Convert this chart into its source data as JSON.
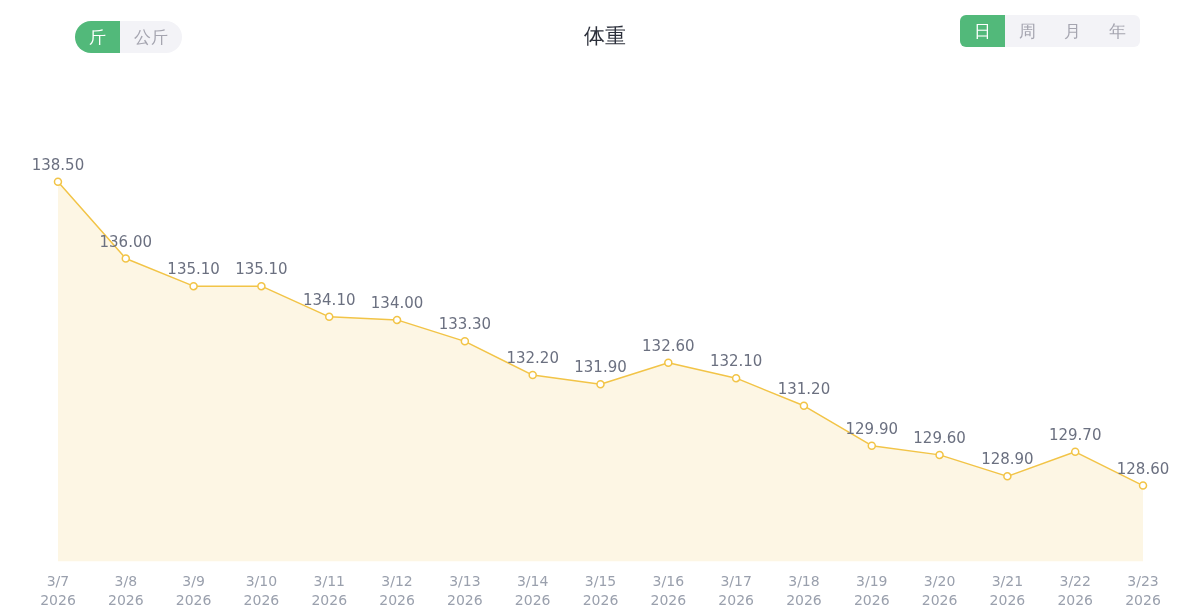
{
  "chart_data": {
    "type": "area",
    "title": "体重",
    "annotations": [
      "斤",
      "公斤",
      "日",
      "周",
      "月",
      "年"
    ],
    "categories": [
      "3/7\n2026",
      "3/8\n2026",
      "3/9\n2026",
      "3/10\n2026",
      "3/11\n2026",
      "3/12\n2026",
      "3/13\n2026",
      "3/14\n2026",
      "3/15\n2026",
      "3/16\n2026",
      "3/17\n2026",
      "3/18\n2026",
      "3/19\n2026",
      "3/20\n2026",
      "3/21\n2026",
      "3/22\n2026",
      "3/23\n2026"
    ],
    "series": [
      {
        "color": "#f2c447",
        "values": [
          138.5,
          136.0,
          135.1,
          135.1,
          134.1,
          134.0,
          133.3,
          132.2,
          131.9,
          132.6,
          132.1,
          131.2,
          129.9,
          129.6,
          128.9,
          129.7,
          128.6
        ],
        "value_labels": [
          "138.50",
          "136.00",
          "135.10",
          "135.10",
          "134.10",
          "134.00",
          "133.30",
          "132.20",
          "131.90",
          "132.60",
          "132.10",
          "131.20",
          "129.90",
          "129.60",
          "128.90",
          "129.70",
          "128.60"
        ]
      }
    ],
    "grid": false,
    "marker": "circle",
    "line_style": "solid",
    "tick_labels": "x"
  }
}
